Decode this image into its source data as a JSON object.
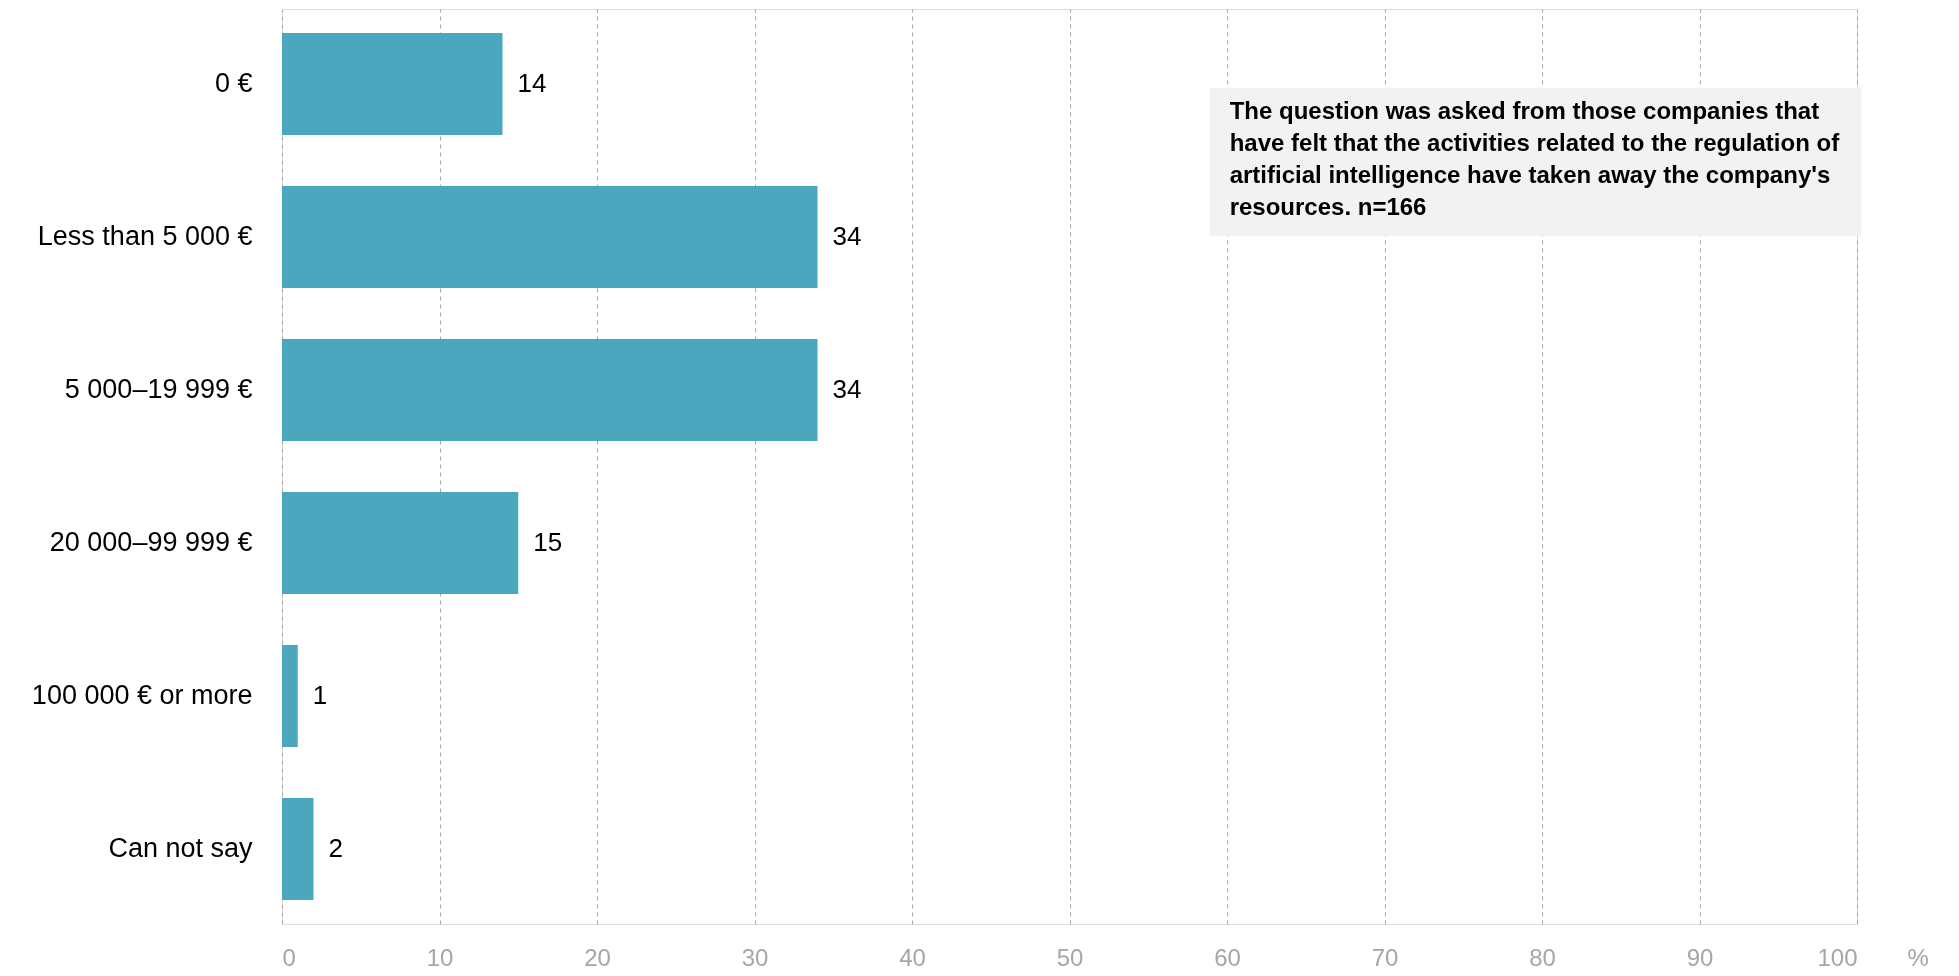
{
  "chart_data": {
    "type": "bar",
    "orientation": "horizontal",
    "categories": [
      "0 €",
      "Less than 5 000 €",
      "5 000–19 999 €",
      "20 000–99 999 €",
      "100 000 € or more",
      "Can not say"
    ],
    "values": [
      14,
      34,
      34,
      15,
      1,
      2
    ],
    "color": "#4ba7bd",
    "xlim": [
      0,
      100
    ],
    "xticks": [
      0,
      10,
      20,
      30,
      40,
      50,
      60,
      70,
      80,
      90,
      100
    ],
    "xlabel": "%",
    "grid": "x",
    "data_labels": true,
    "annotations": [
      "The question was asked from those companies that have felt that the activities related to the regulation of artificial intelligence have taken away the company's resources. n=166"
    ]
  }
}
